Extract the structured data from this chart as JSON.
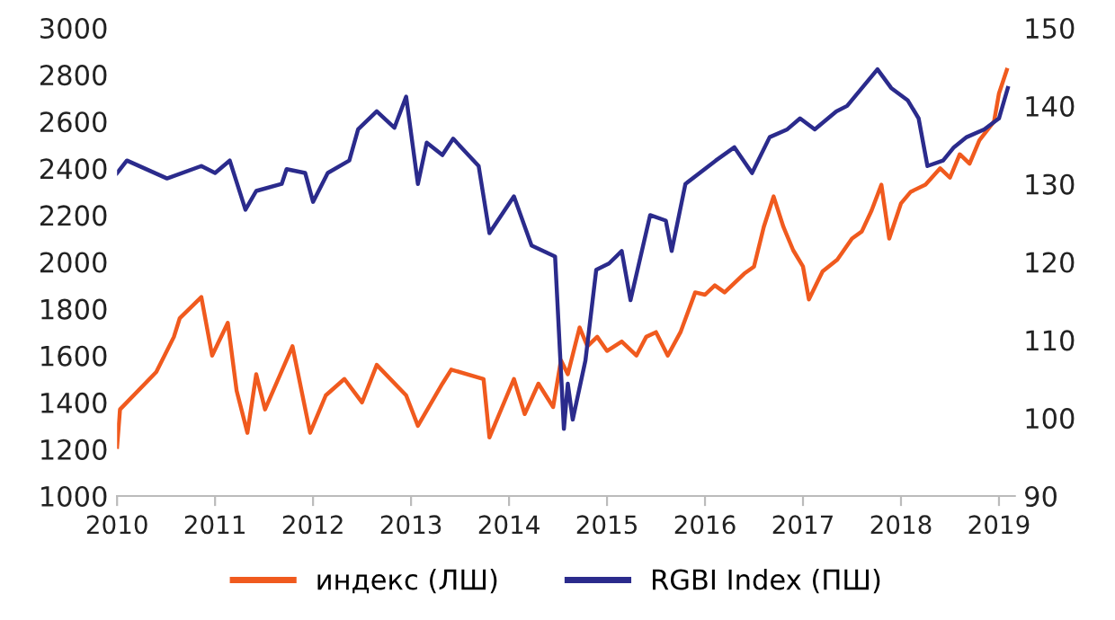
{
  "chart_data": {
    "type": "line",
    "xlim": [
      2010,
      2019.16
    ],
    "xticks": [
      2010,
      2011,
      2012,
      2013,
      2014,
      2015,
      2016,
      2017,
      2018,
      2019
    ],
    "ylim": [
      1000,
      3000
    ],
    "yticks": [
      1000,
      1200,
      1400,
      1600,
      1800,
      2000,
      2200,
      2400,
      2600,
      2800,
      3000
    ],
    "y2lim": [
      90,
      150
    ],
    "y2ticks": [
      90,
      100,
      110,
      120,
      130,
      140,
      150
    ],
    "grid": false,
    "legend": "bottom",
    "marker": "none",
    "line_style": "solid",
    "series": [
      {
        "name": "индекс (ЛШ)",
        "color": "#f05a1e",
        "x": [
          2010.0,
          2010.03,
          2010.4,
          2010.58,
          2010.64,
          2010.86,
          2010.97,
          2011.13,
          2011.22,
          2011.33,
          2011.42,
          2011.51,
          2011.79,
          2011.97,
          2012.13,
          2012.32,
          2012.5,
          2012.65,
          2012.95,
          2013.07,
          2013.32,
          2013.41,
          2013.74,
          2013.8,
          2014.05,
          2014.16,
          2014.3,
          2014.45,
          2014.53,
          2014.6,
          2014.72,
          2014.8,
          2014.9,
          2015.0,
          2015.15,
          2015.3,
          2015.4,
          2015.5,
          2015.62,
          2015.75,
          2015.9,
          2016.0,
          2016.1,
          2016.2,
          2016.4,
          2016.5,
          2016.6,
          2016.7,
          2016.8,
          2016.9,
          2017.0,
          2017.06,
          2017.2,
          2017.35,
          2017.5,
          2017.6,
          2017.7,
          2017.8,
          2017.88,
          2018.0,
          2018.1,
          2018.25,
          2018.4,
          2018.5,
          2018.6,
          2018.7,
          2018.8,
          2018.95,
          2019.0,
          2019.08
        ],
        "values": [
          1210,
          1370,
          1530,
          1680,
          1760,
          1850,
          1600,
          1740,
          1450,
          1270,
          1520,
          1370,
          1640,
          1270,
          1430,
          1500,
          1400,
          1560,
          1430,
          1300,
          1480,
          1540,
          1500,
          1250,
          1500,
          1350,
          1480,
          1380,
          1580,
          1520,
          1720,
          1640,
          1680,
          1620,
          1660,
          1600,
          1680,
          1700,
          1600,
          1700,
          1870,
          1860,
          1900,
          1870,
          1950,
          1980,
          2150,
          2280,
          2150,
          2050,
          1980,
          1840,
          1960,
          2010,
          2100,
          2130,
          2220,
          2330,
          2100,
          2250,
          2300,
          2330,
          2400,
          2360,
          2460,
          2420,
          2520,
          2600,
          2720,
          2820
        ]
      },
      {
        "name": "RGBI Index (ПШ)",
        "color": "#2b2b8c",
        "axis": "y2",
        "x": [
          2010.0,
          2010.1,
          2010.51,
          2010.86,
          2011.0,
          2011.15,
          2011.31,
          2011.42,
          2011.68,
          2011.73,
          2011.92,
          2012.0,
          2012.15,
          2012.37,
          2012.46,
          2012.65,
          2012.83,
          2012.95,
          2013.07,
          2013.16,
          2013.32,
          2013.43,
          2013.69,
          2013.8,
          2014.05,
          2014.23,
          2014.47,
          2014.56,
          2014.6,
          2014.65,
          2014.78,
          2014.89,
          2015.02,
          2015.15,
          2015.24,
          2015.44,
          2015.6,
          2015.66,
          2015.8,
          2016.11,
          2016.3,
          2016.48,
          2016.66,
          2016.84,
          2016.97,
          2017.12,
          2017.34,
          2017.45,
          2017.76,
          2017.9,
          2018.07,
          2018.18,
          2018.27,
          2018.43,
          2018.54,
          2018.67,
          2018.85,
          2019.0,
          2019.09
        ],
        "values": [
          131.4,
          133.0,
          130.7,
          132.3,
          131.4,
          133.0,
          126.7,
          129.1,
          130.0,
          131.9,
          131.4,
          127.7,
          131.4,
          133.0,
          137.0,
          139.3,
          137.2,
          141.2,
          130.0,
          135.3,
          133.7,
          135.8,
          132.3,
          123.7,
          128.4,
          122.1,
          120.7,
          98.6,
          104.4,
          99.8,
          107.4,
          119.0,
          119.8,
          121.4,
          115.1,
          126.0,
          125.3,
          121.4,
          130.0,
          133.0,
          134.7,
          131.4,
          136.0,
          137.0,
          138.4,
          137.0,
          139.3,
          140.0,
          144.7,
          142.3,
          140.7,
          138.4,
          132.3,
          133.0,
          134.7,
          136.0,
          137.0,
          138.4,
          142.3
        ]
      }
    ]
  }
}
